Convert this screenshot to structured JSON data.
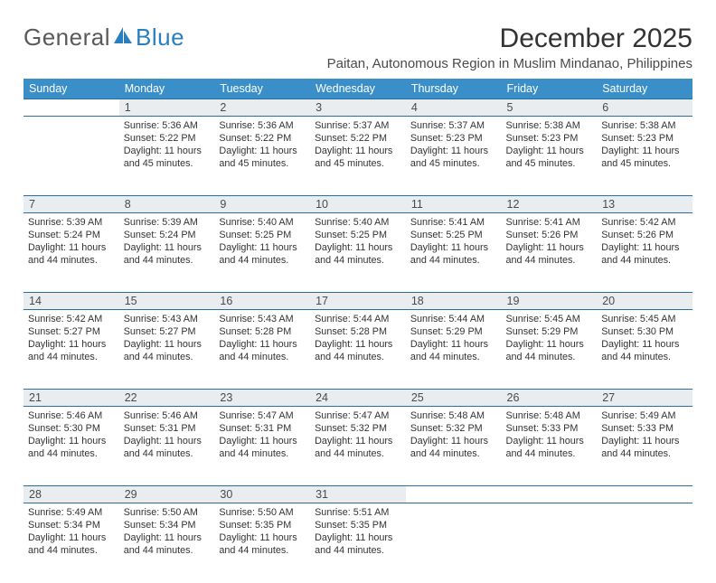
{
  "logo": {
    "part1": "General",
    "part2": "Blue",
    "color_accent": "#2a7fc0"
  },
  "title": "December 2025",
  "subtitle": "Paitan, Autonomous Region in Muslim Mindanao, Philippines",
  "header_bg": "#3a8fc8",
  "daynum_bg": "#e9edf0",
  "border_color": "#2a6ea0",
  "weekdays": [
    "Sunday",
    "Monday",
    "Tuesday",
    "Wednesday",
    "Thursday",
    "Friday",
    "Saturday"
  ],
  "weeks": [
    {
      "days": [
        {
          "num": "",
          "sunrise": "",
          "sunset": "",
          "daylight": ""
        },
        {
          "num": "1",
          "sunrise": "Sunrise: 5:36 AM",
          "sunset": "Sunset: 5:22 PM",
          "daylight": "Daylight: 11 hours and 45 minutes."
        },
        {
          "num": "2",
          "sunrise": "Sunrise: 5:36 AM",
          "sunset": "Sunset: 5:22 PM",
          "daylight": "Daylight: 11 hours and 45 minutes."
        },
        {
          "num": "3",
          "sunrise": "Sunrise: 5:37 AM",
          "sunset": "Sunset: 5:22 PM",
          "daylight": "Daylight: 11 hours and 45 minutes."
        },
        {
          "num": "4",
          "sunrise": "Sunrise: 5:37 AM",
          "sunset": "Sunset: 5:23 PM",
          "daylight": "Daylight: 11 hours and 45 minutes."
        },
        {
          "num": "5",
          "sunrise": "Sunrise: 5:38 AM",
          "sunset": "Sunset: 5:23 PM",
          "daylight": "Daylight: 11 hours and 45 minutes."
        },
        {
          "num": "6",
          "sunrise": "Sunrise: 5:38 AM",
          "sunset": "Sunset: 5:23 PM",
          "daylight": "Daylight: 11 hours and 45 minutes."
        }
      ]
    },
    {
      "days": [
        {
          "num": "7",
          "sunrise": "Sunrise: 5:39 AM",
          "sunset": "Sunset: 5:24 PM",
          "daylight": "Daylight: 11 hours and 44 minutes."
        },
        {
          "num": "8",
          "sunrise": "Sunrise: 5:39 AM",
          "sunset": "Sunset: 5:24 PM",
          "daylight": "Daylight: 11 hours and 44 minutes."
        },
        {
          "num": "9",
          "sunrise": "Sunrise: 5:40 AM",
          "sunset": "Sunset: 5:25 PM",
          "daylight": "Daylight: 11 hours and 44 minutes."
        },
        {
          "num": "10",
          "sunrise": "Sunrise: 5:40 AM",
          "sunset": "Sunset: 5:25 PM",
          "daylight": "Daylight: 11 hours and 44 minutes."
        },
        {
          "num": "11",
          "sunrise": "Sunrise: 5:41 AM",
          "sunset": "Sunset: 5:25 PM",
          "daylight": "Daylight: 11 hours and 44 minutes."
        },
        {
          "num": "12",
          "sunrise": "Sunrise: 5:41 AM",
          "sunset": "Sunset: 5:26 PM",
          "daylight": "Daylight: 11 hours and 44 minutes."
        },
        {
          "num": "13",
          "sunrise": "Sunrise: 5:42 AM",
          "sunset": "Sunset: 5:26 PM",
          "daylight": "Daylight: 11 hours and 44 minutes."
        }
      ]
    },
    {
      "days": [
        {
          "num": "14",
          "sunrise": "Sunrise: 5:42 AM",
          "sunset": "Sunset: 5:27 PM",
          "daylight": "Daylight: 11 hours and 44 minutes."
        },
        {
          "num": "15",
          "sunrise": "Sunrise: 5:43 AM",
          "sunset": "Sunset: 5:27 PM",
          "daylight": "Daylight: 11 hours and 44 minutes."
        },
        {
          "num": "16",
          "sunrise": "Sunrise: 5:43 AM",
          "sunset": "Sunset: 5:28 PM",
          "daylight": "Daylight: 11 hours and 44 minutes."
        },
        {
          "num": "17",
          "sunrise": "Sunrise: 5:44 AM",
          "sunset": "Sunset: 5:28 PM",
          "daylight": "Daylight: 11 hours and 44 minutes."
        },
        {
          "num": "18",
          "sunrise": "Sunrise: 5:44 AM",
          "sunset": "Sunset: 5:29 PM",
          "daylight": "Daylight: 11 hours and 44 minutes."
        },
        {
          "num": "19",
          "sunrise": "Sunrise: 5:45 AM",
          "sunset": "Sunset: 5:29 PM",
          "daylight": "Daylight: 11 hours and 44 minutes."
        },
        {
          "num": "20",
          "sunrise": "Sunrise: 5:45 AM",
          "sunset": "Sunset: 5:30 PM",
          "daylight": "Daylight: 11 hours and 44 minutes."
        }
      ]
    },
    {
      "days": [
        {
          "num": "21",
          "sunrise": "Sunrise: 5:46 AM",
          "sunset": "Sunset: 5:30 PM",
          "daylight": "Daylight: 11 hours and 44 minutes."
        },
        {
          "num": "22",
          "sunrise": "Sunrise: 5:46 AM",
          "sunset": "Sunset: 5:31 PM",
          "daylight": "Daylight: 11 hours and 44 minutes."
        },
        {
          "num": "23",
          "sunrise": "Sunrise: 5:47 AM",
          "sunset": "Sunset: 5:31 PM",
          "daylight": "Daylight: 11 hours and 44 minutes."
        },
        {
          "num": "24",
          "sunrise": "Sunrise: 5:47 AM",
          "sunset": "Sunset: 5:32 PM",
          "daylight": "Daylight: 11 hours and 44 minutes."
        },
        {
          "num": "25",
          "sunrise": "Sunrise: 5:48 AM",
          "sunset": "Sunset: 5:32 PM",
          "daylight": "Daylight: 11 hours and 44 minutes."
        },
        {
          "num": "26",
          "sunrise": "Sunrise: 5:48 AM",
          "sunset": "Sunset: 5:33 PM",
          "daylight": "Daylight: 11 hours and 44 minutes."
        },
        {
          "num": "27",
          "sunrise": "Sunrise: 5:49 AM",
          "sunset": "Sunset: 5:33 PM",
          "daylight": "Daylight: 11 hours and 44 minutes."
        }
      ]
    },
    {
      "days": [
        {
          "num": "28",
          "sunrise": "Sunrise: 5:49 AM",
          "sunset": "Sunset: 5:34 PM",
          "daylight": "Daylight: 11 hours and 44 minutes."
        },
        {
          "num": "29",
          "sunrise": "Sunrise: 5:50 AM",
          "sunset": "Sunset: 5:34 PM",
          "daylight": "Daylight: 11 hours and 44 minutes."
        },
        {
          "num": "30",
          "sunrise": "Sunrise: 5:50 AM",
          "sunset": "Sunset: 5:35 PM",
          "daylight": "Daylight: 11 hours and 44 minutes."
        },
        {
          "num": "31",
          "sunrise": "Sunrise: 5:51 AM",
          "sunset": "Sunset: 5:35 PM",
          "daylight": "Daylight: 11 hours and 44 minutes."
        },
        {
          "num": "",
          "sunrise": "",
          "sunset": "",
          "daylight": ""
        },
        {
          "num": "",
          "sunrise": "",
          "sunset": "",
          "daylight": ""
        },
        {
          "num": "",
          "sunrise": "",
          "sunset": "",
          "daylight": ""
        }
      ]
    }
  ]
}
